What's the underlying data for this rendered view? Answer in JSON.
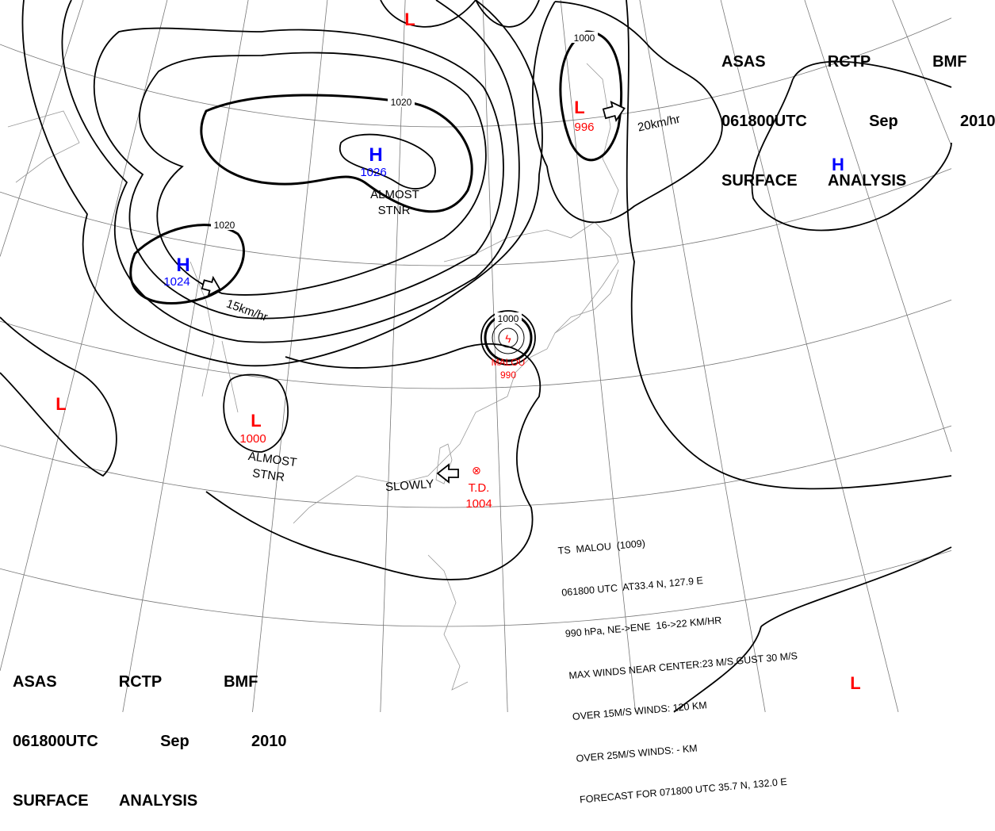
{
  "header_top": {
    "line1": "ASAS    RCTP    BMF",
    "line2": "061800UTC    Sep    2010",
    "line3": "SURFACE  ANALYSIS"
  },
  "header_bottom": {
    "line1": "ASAS    RCTP    BMF",
    "line2": "061800UTC    Sep    2010",
    "line3": "SURFACE  ANALYSIS"
  },
  "colors": {
    "high": "#0000ff",
    "low": "#ff0000",
    "isobar": "#000000",
    "coast": "#888888"
  },
  "highs": [
    {
      "symbol": "H",
      "pressure": "1026",
      "note1": "ALMOST",
      "note2": "STNR"
    },
    {
      "symbol": "H",
      "pressure": "1024",
      "motion": "15km/hr"
    },
    {
      "symbol": "H"
    }
  ],
  "lows": [
    {
      "symbol": "L"
    },
    {
      "symbol": "L",
      "pressure": "996",
      "motion": "20km/hr"
    },
    {
      "symbol": "L",
      "pressure": "1000",
      "note1": "ALMOST",
      "note2": "STNR"
    },
    {
      "symbol": "L"
    },
    {
      "symbol": "L"
    }
  ],
  "typhoon": {
    "name": "MALOU",
    "pressure": "990",
    "isobar": "1000"
  },
  "tropical_depression": {
    "label": "T.D.",
    "pressure": "1004",
    "motion": "SLOWLY"
  },
  "isobar_labels": [
    "1020",
    "1020",
    "1000"
  ],
  "info_box": [
    "TS  MALOU  (1009)",
    "061800 UTC  AT33.4 N, 127.9 E",
    "990 hPa, NE->ENE  16->22 KM/HR",
    "MAX WINDS NEAR CENTER:23 M/S,GUST 30 M/S",
    "OVER 15M/S WINDS: 120 KM",
    "OVER 25M/S WINDS: - KM",
    "FORECAST FOR 071800 UTC 35.7 N, 132.0 E"
  ]
}
